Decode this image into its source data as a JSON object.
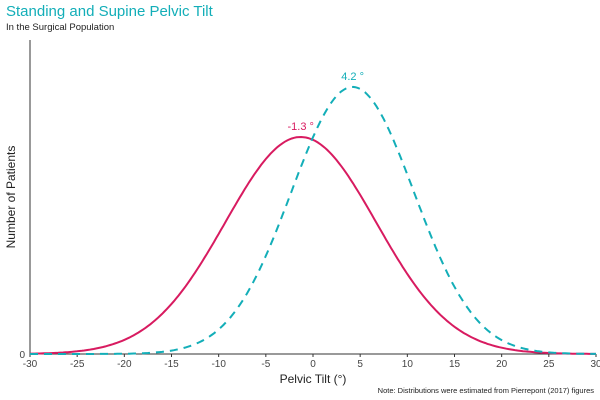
{
  "title": "Standing and Supine Pelvic Tilt",
  "subtitle": "In the Surgical Population",
  "note": "Note: Distributions were estimated from Pierrepont (2017) figures",
  "chart_data": {
    "type": "line",
    "xlabel": "Pelvic Tilt (°)",
    "ylabel": "Number of Patients",
    "xlim": [
      -30,
      30
    ],
    "xticks": [
      "-30",
      "-25",
      "-20",
      "-15",
      "-10",
      "-5",
      "0",
      "5",
      "10",
      "15",
      "20",
      "25",
      "30"
    ],
    "yticks": [
      "0"
    ],
    "grid": false,
    "series": [
      {
        "distribution": "normal",
        "mean": -1.3,
        "sd": 8.0,
        "peak_label": "-1.3 °",
        "color": "#d81b60",
        "style": "solid"
      },
      {
        "distribution": "normal",
        "mean": 4.2,
        "sd": 6.5,
        "peak_label": "4.2 °",
        "color": "#13aeb8",
        "style": "dashed"
      }
    ]
  }
}
